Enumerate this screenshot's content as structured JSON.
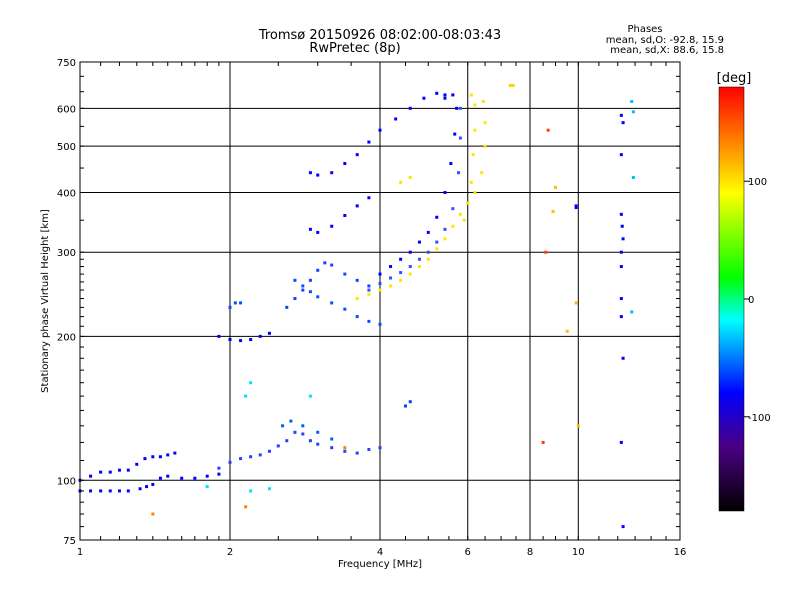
{
  "chart_data": {
    "type": "scatter",
    "title": "Tromsø 20150926 08:02:00-08:03:43",
    "subtitle": "RwPretec (8p)",
    "xlabel": "Frequency [MHz]",
    "ylabel": "Stationary phase Virtual Height [km]",
    "x_scale": "log",
    "y_scale": "log",
    "xlim": [
      1,
      16
    ],
    "ylim": [
      75,
      750
    ],
    "x_ticks": [
      1,
      2,
      4,
      6,
      8,
      10,
      16
    ],
    "y_ticks": [
      75,
      100,
      200,
      300,
      400,
      500,
      600,
      750
    ],
    "grid": true,
    "phases_box": {
      "title": "Phases",
      "line_o": "mean, sd,O: -92.8, 15.9",
      "line_x": "mean, sd,X:  88.6, 15.8"
    },
    "colorbar": {
      "label": "[deg]",
      "range": [
        -180,
        180
      ],
      "ticks": [
        100,
        0,
        -100
      ],
      "colors": [
        "#000000",
        "#4b0082",
        "#0000ff",
        "#00ffff",
        "#00ff00",
        "#ffff00",
        "#ff0000"
      ]
    },
    "series": [
      {
        "values": [
          [
            1.0,
            95
          ],
          [
            1.05,
            95
          ],
          [
            1.1,
            95
          ],
          [
            1.15,
            95
          ],
          [
            1.2,
            95
          ],
          [
            1.25,
            95
          ]
        ],
        "color": "#0000ff"
      },
      {
        "values": [
          [
            1.0,
            100
          ],
          [
            1.05,
            102
          ],
          [
            1.1,
            104
          ],
          [
            1.15,
            104
          ],
          [
            1.2,
            105
          ],
          [
            1.25,
            105
          ]
        ],
        "color": "#0000ff"
      },
      {
        "values": [
          [
            1.3,
            108
          ],
          [
            1.35,
            111
          ],
          [
            1.4,
            112
          ],
          [
            1.45,
            112
          ],
          [
            1.5,
            113
          ],
          [
            1.55,
            114
          ]
        ],
        "color": "#0000ff"
      },
      {
        "values": [
          [
            1.32,
            96
          ],
          [
            1.36,
            97
          ],
          [
            1.4,
            98
          ],
          [
            1.45,
            101
          ],
          [
            1.5,
            102
          ],
          [
            1.6,
            101
          ],
          [
            1.7,
            101
          ],
          [
            1.8,
            102
          ],
          [
            1.9,
            103
          ]
        ],
        "color": "#0000ff"
      },
      {
        "values": [
          [
            1.9,
            106
          ],
          [
            2.0,
            109
          ],
          [
            2.1,
            111
          ],
          [
            2.2,
            112
          ],
          [
            2.3,
            113
          ],
          [
            2.4,
            115
          ],
          [
            2.5,
            118
          ],
          [
            2.6,
            121
          ],
          [
            2.7,
            126
          ],
          [
            2.8,
            125
          ],
          [
            2.9,
            121
          ],
          [
            3.0,
            119
          ],
          [
            3.2,
            117
          ],
          [
            3.4,
            115
          ],
          [
            3.6,
            114
          ],
          [
            3.8,
            116
          ],
          [
            4.0,
            117
          ]
        ],
        "color": "#2a3cff"
      },
      {
        "values": [
          [
            2.55,
            130
          ],
          [
            2.65,
            133
          ],
          [
            2.8,
            130
          ],
          [
            3.0,
            126
          ],
          [
            3.2,
            122
          ]
        ],
        "color": "#0060ff"
      },
      {
        "values": [
          [
            1.9,
            200
          ],
          [
            2.0,
            197
          ],
          [
            2.1,
            196
          ],
          [
            2.2,
            197
          ],
          [
            2.3,
            200
          ],
          [
            2.4,
            203
          ]
        ],
        "color": "#0000ff"
      },
      {
        "values": [
          [
            2.0,
            230
          ],
          [
            2.05,
            235
          ],
          [
            2.1,
            235
          ]
        ],
        "color": "#0050ff"
      },
      {
        "values": [
          [
            2.7,
            262
          ],
          [
            2.8,
            255
          ],
          [
            2.9,
            248
          ],
          [
            3.0,
            242
          ],
          [
            3.2,
            235
          ],
          [
            3.4,
            228
          ],
          [
            3.6,
            220
          ],
          [
            3.8,
            215
          ],
          [
            4.0,
            212
          ]
        ],
        "color": "#0050ff"
      },
      {
        "values": [
          [
            2.6,
            230
          ],
          [
            2.7,
            240
          ],
          [
            2.8,
            250
          ],
          [
            2.9,
            262
          ],
          [
            3.0,
            275
          ],
          [
            3.1,
            285
          ],
          [
            3.2,
            282
          ],
          [
            3.4,
            270
          ],
          [
            3.6,
            262
          ],
          [
            3.8,
            255
          ]
        ],
        "color": "#1a40ff"
      },
      {
        "values": [
          [
            2.9,
            335
          ],
          [
            3.0,
            330
          ],
          [
            3.2,
            340
          ],
          [
            3.4,
            358
          ],
          [
            3.6,
            375
          ],
          [
            3.8,
            390
          ]
        ],
        "color": "#0000ff"
      },
      {
        "values": [
          [
            2.9,
            440
          ],
          [
            3.0,
            435
          ],
          [
            3.2,
            440
          ],
          [
            3.4,
            460
          ],
          [
            3.6,
            480
          ],
          [
            3.8,
            510
          ],
          [
            4.0,
            540
          ],
          [
            4.3,
            570
          ],
          [
            4.6,
            600
          ],
          [
            4.9,
            630
          ],
          [
            5.2,
            645
          ],
          [
            5.4,
            640
          ]
        ],
        "color": "#0000ff"
      },
      {
        "values": [
          [
            4.0,
            270
          ],
          [
            4.2,
            280
          ],
          [
            4.4,
            290
          ],
          [
            4.6,
            300
          ],
          [
            4.8,
            315
          ],
          [
            5.0,
            330
          ],
          [
            5.2,
            355
          ],
          [
            5.4,
            400
          ],
          [
            5.55,
            460
          ],
          [
            5.65,
            530
          ],
          [
            5.7,
            600
          ],
          [
            5.6,
            640
          ],
          [
            5.4,
            630
          ]
        ],
        "color": "#0000ff"
      },
      {
        "values": [
          [
            3.8,
            250
          ],
          [
            4.0,
            258
          ],
          [
            4.2,
            265
          ],
          [
            4.4,
            272
          ],
          [
            4.6,
            280
          ],
          [
            4.8,
            290
          ],
          [
            5.0,
            300
          ],
          [
            5.2,
            315
          ],
          [
            5.4,
            335
          ],
          [
            5.6,
            370
          ],
          [
            5.75,
            440
          ],
          [
            5.8,
            520
          ],
          [
            5.8,
            600
          ]
        ],
        "color": "#3050ff"
      },
      {
        "values": [
          [
            3.6,
            240
          ],
          [
            3.8,
            245
          ],
          [
            4.0,
            250
          ],
          [
            4.2,
            255
          ],
          [
            4.4,
            262
          ],
          [
            4.6,
            270
          ],
          [
            4.8,
            280
          ],
          [
            5.0,
            290
          ],
          [
            5.2,
            305
          ],
          [
            5.4,
            320
          ],
          [
            5.6,
            340
          ],
          [
            5.8,
            360
          ],
          [
            6.0,
            380
          ],
          [
            6.2,
            400
          ],
          [
            6.4,
            440
          ],
          [
            6.5,
            500
          ],
          [
            6.5,
            560
          ],
          [
            6.45,
            620
          ]
        ],
        "color": "#ffe600"
      },
      {
        "values": [
          [
            5.9,
            350
          ],
          [
            6.0,
            380
          ],
          [
            6.1,
            420
          ],
          [
            6.15,
            480
          ],
          [
            6.2,
            540
          ],
          [
            6.2,
            610
          ],
          [
            6.1,
            640
          ]
        ],
        "color": "#ffe600"
      },
      {
        "values": [
          [
            4.4,
            420
          ],
          [
            4.6,
            430
          ]
        ],
        "color": "#ffe600"
      },
      {
        "values": [
          [
            7.3,
            670
          ],
          [
            7.4,
            670
          ]
        ],
        "color": "#ffd000"
      },
      {
        "values": [
          [
            12.2,
            580
          ],
          [
            12.3,
            560
          ],
          [
            12.2,
            480
          ],
          [
            12.2,
            360
          ],
          [
            12.25,
            340
          ],
          [
            12.3,
            320
          ],
          [
            12.2,
            300
          ],
          [
            12.2,
            280
          ],
          [
            12.2,
            240
          ],
          [
            12.2,
            220
          ],
          [
            12.3,
            180
          ],
          [
            12.2,
            120
          ],
          [
            12.3,
            80
          ]
        ],
        "color": "#0000ff"
      },
      {
        "values": [
          [
            12.8,
            620
          ],
          [
            12.9,
            590
          ],
          [
            12.9,
            430
          ],
          [
            12.8,
            225
          ]
        ],
        "color": "#00bfff"
      },
      {
        "values": [
          [
            8.5,
            120
          ],
          [
            8.6,
            300
          ],
          [
            8.7,
            540
          ]
        ],
        "color": "#ff4000"
      },
      {
        "values": [
          [
            8.9,
            365
          ],
          [
            9.0,
            410
          ],
          [
            9.9,
            235
          ],
          [
            9.5,
            205
          ],
          [
            10.0,
            130
          ]
        ],
        "color": "#ffbf00"
      },
      {
        "values": [
          [
            9.9,
            372
          ],
          [
            9.9,
            375
          ]
        ],
        "color": "#0000ff"
      },
      {
        "values": [
          [
            4.5,
            143
          ],
          [
            4.6,
            146
          ]
        ],
        "color": "#0040ff"
      },
      {
        "values": [
          [
            2.15,
            150
          ],
          [
            2.2,
            160
          ],
          [
            2.9,
            150
          ],
          [
            1.8,
            97
          ],
          [
            2.2,
            95
          ],
          [
            2.4,
            96
          ]
        ],
        "color": "#00e0ff"
      },
      {
        "values": [
          [
            1.4,
            85
          ],
          [
            2.15,
            88
          ],
          [
            3.4,
            117
          ]
        ],
        "color": "#ff8000"
      }
    ]
  }
}
